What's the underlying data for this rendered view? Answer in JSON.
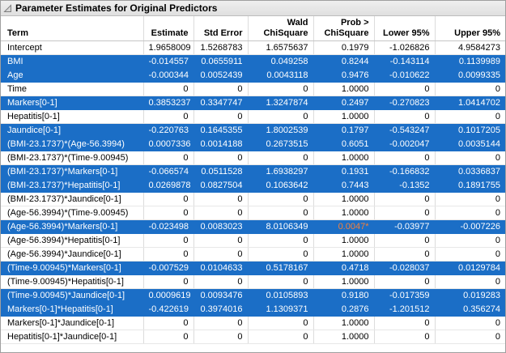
{
  "panel": {
    "title": "Parameter Estimates for Original Predictors"
  },
  "colors": {
    "selection_blue": "#1b6ec6",
    "significant_orange": "#d35a17",
    "titlebar_gray": "#e6e6e6"
  },
  "icons": {
    "disclosure": "open-disclosure-triangle-icon"
  },
  "table": {
    "columns": [
      "Term",
      "Estimate",
      "Std Error",
      "Wald\nChiSquare",
      "Prob >\nChiSquare",
      "Lower 95%",
      "Upper 95%"
    ],
    "rows": [
      {
        "term": "Intercept",
        "estimate": "1.9658009",
        "std_error": "1.5268783",
        "wald_chisquare": "1.6575637",
        "prob_chisquare": "0.1979",
        "lower_95": "-1.026826",
        "upper_95": "4.9584273",
        "selected": false,
        "significant": false
      },
      {
        "term": "BMI",
        "estimate": "-0.014557",
        "std_error": "0.0655911",
        "wald_chisquare": "0.049258",
        "prob_chisquare": "0.8244",
        "lower_95": "-0.143114",
        "upper_95": "0.1139989",
        "selected": true,
        "significant": false
      },
      {
        "term": "Age",
        "estimate": "-0.000344",
        "std_error": "0.0052439",
        "wald_chisquare": "0.0043118",
        "prob_chisquare": "0.9476",
        "lower_95": "-0.010622",
        "upper_95": "0.0099335",
        "selected": true,
        "significant": false
      },
      {
        "term": "Time",
        "estimate": "0",
        "std_error": "0",
        "wald_chisquare": "0",
        "prob_chisquare": "1.0000",
        "lower_95": "0",
        "upper_95": "0",
        "selected": false,
        "significant": false
      },
      {
        "term": "Markers[0-1]",
        "estimate": "0.3853237",
        "std_error": "0.3347747",
        "wald_chisquare": "1.3247874",
        "prob_chisquare": "0.2497",
        "lower_95": "-0.270823",
        "upper_95": "1.0414702",
        "selected": true,
        "significant": false
      },
      {
        "term": "Hepatitis[0-1]",
        "estimate": "0",
        "std_error": "0",
        "wald_chisquare": "0",
        "prob_chisquare": "1.0000",
        "lower_95": "0",
        "upper_95": "0",
        "selected": false,
        "significant": false
      },
      {
        "term": "Jaundice[0-1]",
        "estimate": "-0.220763",
        "std_error": "0.1645355",
        "wald_chisquare": "1.8002539",
        "prob_chisquare": "0.1797",
        "lower_95": "-0.543247",
        "upper_95": "0.1017205",
        "selected": true,
        "significant": false
      },
      {
        "term": "(BMI-23.1737)*(Age-56.3994)",
        "estimate": "0.0007336",
        "std_error": "0.0014188",
        "wald_chisquare": "0.2673515",
        "prob_chisquare": "0.6051",
        "lower_95": "-0.002047",
        "upper_95": "0.0035144",
        "selected": true,
        "significant": false
      },
      {
        "term": "(BMI-23.1737)*(Time-9.00945)",
        "estimate": "0",
        "std_error": "0",
        "wald_chisquare": "0",
        "prob_chisquare": "1.0000",
        "lower_95": "0",
        "upper_95": "0",
        "selected": false,
        "significant": false
      },
      {
        "term": "(BMI-23.1737)*Markers[0-1]",
        "estimate": "-0.066574",
        "std_error": "0.0511528",
        "wald_chisquare": "1.6938297",
        "prob_chisquare": "0.1931",
        "lower_95": "-0.166832",
        "upper_95": "0.0336837",
        "selected": true,
        "significant": false
      },
      {
        "term": "(BMI-23.1737)*Hepatitis[0-1]",
        "estimate": "0.0269878",
        "std_error": "0.0827504",
        "wald_chisquare": "0.1063642",
        "prob_chisquare": "0.7443",
        "lower_95": "-0.1352",
        "upper_95": "0.1891755",
        "selected": true,
        "significant": false
      },
      {
        "term": "(BMI-23.1737)*Jaundice[0-1]",
        "estimate": "0",
        "std_error": "0",
        "wald_chisquare": "0",
        "prob_chisquare": "1.0000",
        "lower_95": "0",
        "upper_95": "0",
        "selected": false,
        "significant": false
      },
      {
        "term": "(Age-56.3994)*(Time-9.00945)",
        "estimate": "0",
        "std_error": "0",
        "wald_chisquare": "0",
        "prob_chisquare": "1.0000",
        "lower_95": "0",
        "upper_95": "0",
        "selected": false,
        "significant": false
      },
      {
        "term": "(Age-56.3994)*Markers[0-1]",
        "estimate": "-0.023498",
        "std_error": "0.0083023",
        "wald_chisquare": "8.0106349",
        "prob_chisquare": "0.0047*",
        "lower_95": "-0.03977",
        "upper_95": "-0.007226",
        "selected": true,
        "significant": true
      },
      {
        "term": "(Age-56.3994)*Hepatitis[0-1]",
        "estimate": "0",
        "std_error": "0",
        "wald_chisquare": "0",
        "prob_chisquare": "1.0000",
        "lower_95": "0",
        "upper_95": "0",
        "selected": false,
        "significant": false
      },
      {
        "term": "(Age-56.3994)*Jaundice[0-1]",
        "estimate": "0",
        "std_error": "0",
        "wald_chisquare": "0",
        "prob_chisquare": "1.0000",
        "lower_95": "0",
        "upper_95": "0",
        "selected": false,
        "significant": false
      },
      {
        "term": "(Time-9.00945)*Markers[0-1]",
        "estimate": "-0.007529",
        "std_error": "0.0104633",
        "wald_chisquare": "0.5178167",
        "prob_chisquare": "0.4718",
        "lower_95": "-0.028037",
        "upper_95": "0.0129784",
        "selected": true,
        "significant": false
      },
      {
        "term": "(Time-9.00945)*Hepatitis[0-1]",
        "estimate": "0",
        "std_error": "0",
        "wald_chisquare": "0",
        "prob_chisquare": "1.0000",
        "lower_95": "0",
        "upper_95": "0",
        "selected": false,
        "significant": false
      },
      {
        "term": "(Time-9.00945)*Jaundice[0-1]",
        "estimate": "0.0009619",
        "std_error": "0.0093476",
        "wald_chisquare": "0.0105893",
        "prob_chisquare": "0.9180",
        "lower_95": "-0.017359",
        "upper_95": "0.019283",
        "selected": true,
        "significant": false
      },
      {
        "term": "Markers[0-1]*Hepatitis[0-1]",
        "estimate": "-0.422619",
        "std_error": "0.3974016",
        "wald_chisquare": "1.1309371",
        "prob_chisquare": "0.2876",
        "lower_95": "-1.201512",
        "upper_95": "0.356274",
        "selected": true,
        "significant": false
      },
      {
        "term": "Markers[0-1]*Jaundice[0-1]",
        "estimate": "0",
        "std_error": "0",
        "wald_chisquare": "0",
        "prob_chisquare": "1.0000",
        "lower_95": "0",
        "upper_95": "0",
        "selected": false,
        "significant": false
      },
      {
        "term": "Hepatitis[0-1]*Jaundice[0-1]",
        "estimate": "0",
        "std_error": "0",
        "wald_chisquare": "0",
        "prob_chisquare": "1.0000",
        "lower_95": "0",
        "upper_95": "0",
        "selected": false,
        "significant": false
      }
    ]
  }
}
